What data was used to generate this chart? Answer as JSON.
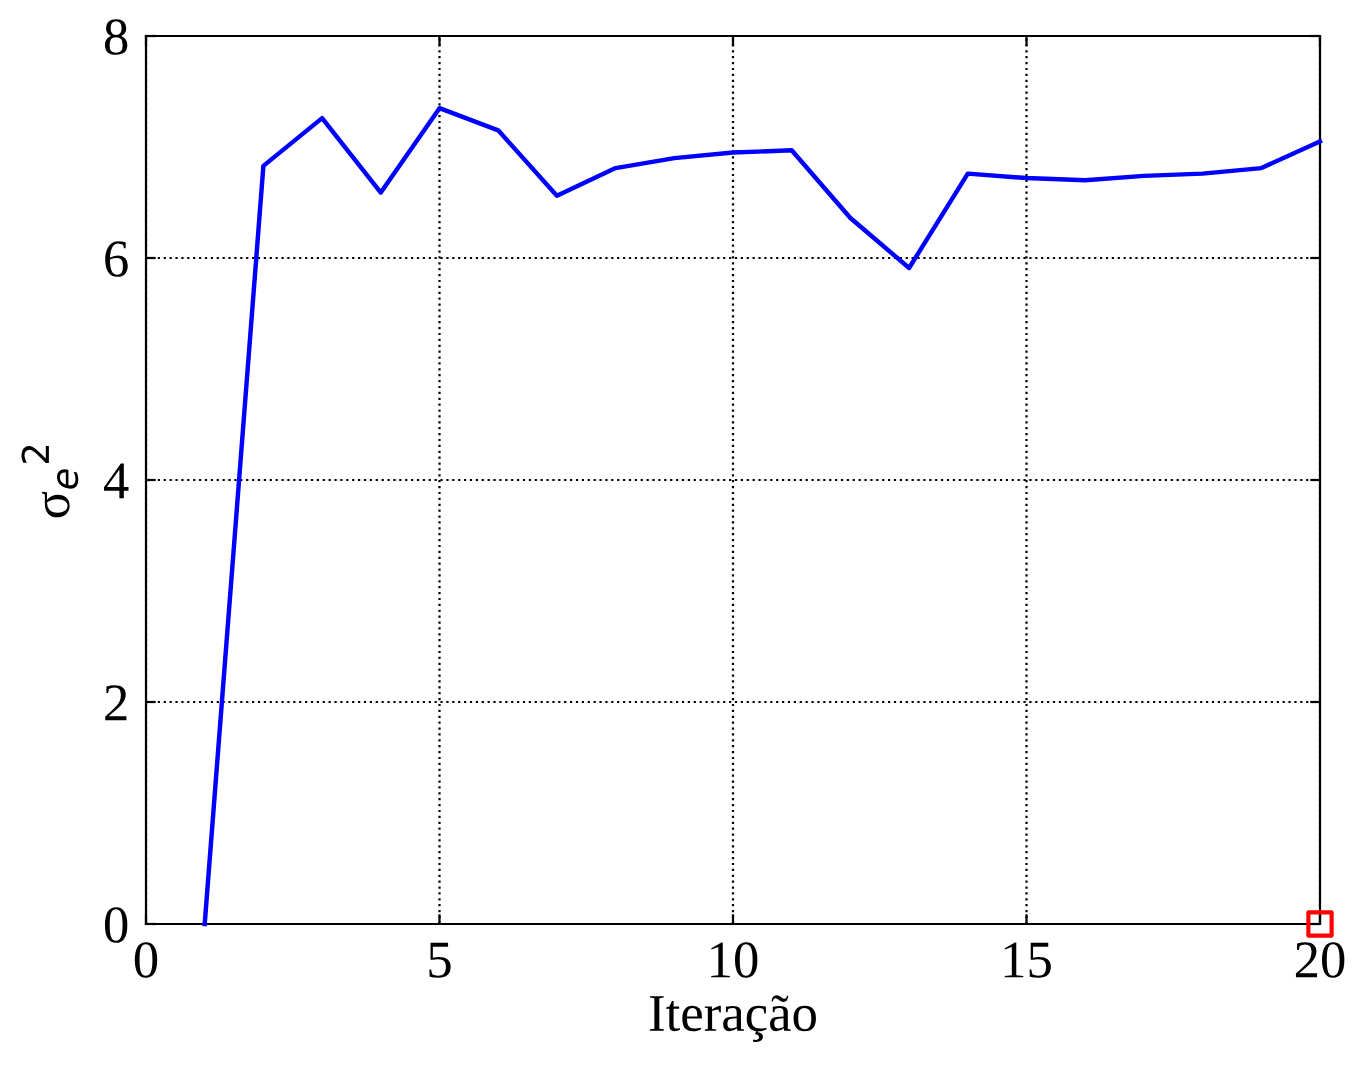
{
  "chart_data": {
    "type": "line",
    "xlabel": "Iteração",
    "ylabel": "σ$_{e}$$^{2}$",
    "xlim": [
      0,
      20
    ],
    "ylim": [
      0,
      8
    ],
    "xticks": [
      0,
      5,
      10,
      15,
      20
    ],
    "yticks": [
      0,
      2,
      4,
      6,
      8
    ],
    "grid": true,
    "series": [
      {
        "color": "#0000ff",
        "x": [
          1,
          2,
          3,
          4,
          5,
          6,
          7,
          8,
          9,
          10,
          11,
          12,
          13,
          14,
          15,
          16,
          17,
          18,
          19,
          20
        ],
        "values": [
          0,
          6.83,
          7.26,
          6.59,
          7.35,
          7.15,
          6.56,
          6.81,
          6.9,
          6.95,
          6.97,
          6.36,
          5.91,
          6.76,
          6.72,
          6.7,
          6.74,
          6.76,
          6.81,
          7.05
        ]
      },
      {
        "type": "scatter",
        "marker": "square",
        "color": "#ff0000",
        "x": [
          20
        ],
        "values": [
          0
        ]
      }
    ]
  }
}
